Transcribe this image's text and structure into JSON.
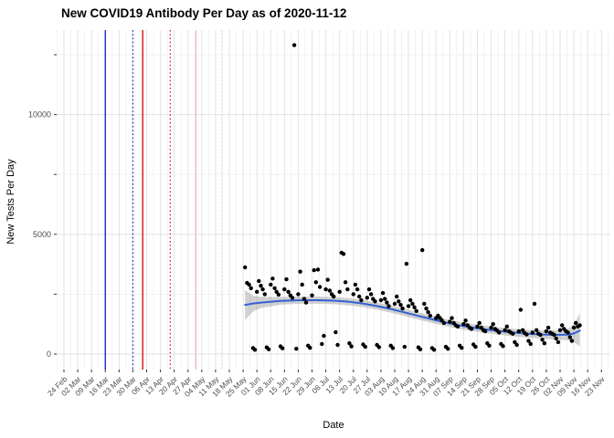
{
  "chart_data": {
    "type": "scatter",
    "title": "New COVID19 Antibody Per Day as of 2020-11-12",
    "xlabel": "Date",
    "ylabel": "New Tests Per Day",
    "x_domain": [
      "2020-02-24",
      "2020-11-23"
    ],
    "ylim": [
      0,
      13500
    ],
    "grid": "on",
    "legend": "none",
    "x_ticks": [
      "24 Feb",
      "02 Mar",
      "09 Mar",
      "16 Mar",
      "23 Mar",
      "30 Mar",
      "06 Apr",
      "13 Apr",
      "20 Apr",
      "27 Apr",
      "04 May",
      "11 May",
      "18 May",
      "25 May",
      "01 Jun",
      "08 Jun",
      "15 Jun",
      "22 Jun",
      "29 Jun",
      "06 Jul",
      "13 Jul",
      "20 Jul",
      "27 Jul",
      "03 Aug",
      "10 Aug",
      "17 Aug",
      "24 Aug",
      "31 Aug",
      "07 Sep",
      "14 Sep",
      "21 Sep",
      "28 Sep",
      "05 Oct",
      "12 Oct",
      "19 Oct",
      "26 Oct",
      "02 Nov",
      "09 Nov",
      "16 Nov",
      "23 Nov"
    ],
    "y_ticks": [
      [
        0,
        "0"
      ],
      [
        2500,
        ""
      ],
      [
        5000,
        "5000"
      ],
      [
        7500,
        ""
      ],
      [
        10000,
        "10000"
      ],
      [
        12500,
        ""
      ]
    ],
    "vlines": [
      {
        "date": "2020-03-16",
        "color": "#1414cc",
        "style": "solid"
      },
      {
        "date": "2020-03-30",
        "color": "#2a2ac4",
        "style": "dotted"
      },
      {
        "date": "2020-04-04",
        "color": "#d40000",
        "style": "solid"
      },
      {
        "date": "2020-04-18",
        "color": "#c23030",
        "style": "dotted"
      },
      {
        "date": "2020-05-01",
        "color": "#ffb6c1",
        "style": "solid"
      },
      {
        "date": "2020-05-14",
        "color": "#ffd0d9",
        "style": "dotted"
      }
    ],
    "smooth": [
      [
        "2020-05-26",
        2050,
        1420,
        2680
      ],
      [
        "2020-05-30",
        2110,
        1780,
        2440
      ],
      [
        "2020-06-03",
        2150,
        1920,
        2390
      ],
      [
        "2020-06-13",
        2220,
        2060,
        2380
      ],
      [
        "2020-06-23",
        2250,
        2100,
        2400
      ],
      [
        "2020-07-03",
        2250,
        2100,
        2400
      ],
      [
        "2020-07-10",
        2230,
        2080,
        2380
      ],
      [
        "2020-07-17",
        2190,
        2040,
        2340
      ],
      [
        "2020-07-24",
        2120,
        1970,
        2270
      ],
      [
        "2020-07-31",
        2020,
        1870,
        2170
      ],
      [
        "2020-08-07",
        1900,
        1750,
        2050
      ],
      [
        "2020-08-14",
        1760,
        1610,
        1910
      ],
      [
        "2020-08-21",
        1610,
        1460,
        1760
      ],
      [
        "2020-08-28",
        1470,
        1320,
        1620
      ],
      [
        "2020-09-04",
        1330,
        1180,
        1480
      ],
      [
        "2020-09-11",
        1210,
        1060,
        1360
      ],
      [
        "2020-09-18",
        1110,
        960,
        1260
      ],
      [
        "2020-09-25",
        1030,
        880,
        1180
      ],
      [
        "2020-10-02",
        960,
        810,
        1110
      ],
      [
        "2020-10-09",
        900,
        740,
        1060
      ],
      [
        "2020-10-16",
        855,
        690,
        1020
      ],
      [
        "2020-10-23",
        820,
        650,
        990
      ],
      [
        "2020-10-30",
        800,
        610,
        990
      ],
      [
        "2020-11-06",
        810,
        570,
        1060
      ],
      [
        "2020-11-09",
        860,
        500,
        1250
      ],
      [
        "2020-11-12",
        980,
        320,
        1700
      ]
    ],
    "points": [
      [
        "2020-05-26",
        3620
      ],
      [
        "2020-05-27",
        2970
      ],
      [
        "2020-05-28",
        2900
      ],
      [
        "2020-05-29",
        2750
      ],
      [
        "2020-05-30",
        250
      ],
      [
        "2020-05-31",
        180
      ],
      [
        "2020-06-01",
        2600
      ],
      [
        "2020-06-02",
        3050
      ],
      [
        "2020-06-03",
        2850
      ],
      [
        "2020-06-04",
        2700
      ],
      [
        "2020-06-05",
        2500
      ],
      [
        "2020-06-06",
        280
      ],
      [
        "2020-06-07",
        200
      ],
      [
        "2020-06-08",
        2900
      ],
      [
        "2020-06-09",
        3150
      ],
      [
        "2020-06-10",
        2750
      ],
      [
        "2020-06-11",
        2600
      ],
      [
        "2020-06-12",
        2480
      ],
      [
        "2020-06-13",
        320
      ],
      [
        "2020-06-14",
        240
      ],
      [
        "2020-06-15",
        2700
      ],
      [
        "2020-06-16",
        3120
      ],
      [
        "2020-06-17",
        2600
      ],
      [
        "2020-06-18",
        2450
      ],
      [
        "2020-06-19",
        2350
      ],
      [
        "2020-06-20",
        12900
      ],
      [
        "2020-06-21",
        220
      ],
      [
        "2020-06-22",
        2500
      ],
      [
        "2020-06-23",
        3440
      ],
      [
        "2020-06-24",
        2900
      ],
      [
        "2020-06-25",
        2300
      ],
      [
        "2020-06-26",
        2150
      ],
      [
        "2020-06-27",
        350
      ],
      [
        "2020-06-28",
        260
      ],
      [
        "2020-06-29",
        2450
      ],
      [
        "2020-06-30",
        3500
      ],
      [
        "2020-07-01",
        3000
      ],
      [
        "2020-07-02",
        3530
      ],
      [
        "2020-07-03",
        2800
      ],
      [
        "2020-07-04",
        420
      ],
      [
        "2020-07-05",
        760
      ],
      [
        "2020-07-06",
        2700
      ],
      [
        "2020-07-07",
        3100
      ],
      [
        "2020-07-08",
        2650
      ],
      [
        "2020-07-09",
        2500
      ],
      [
        "2020-07-10",
        2400
      ],
      [
        "2020-07-11",
        910
      ],
      [
        "2020-07-12",
        380
      ],
      [
        "2020-07-13",
        2600
      ],
      [
        "2020-07-14",
        4230
      ],
      [
        "2020-07-15",
        4180
      ],
      [
        "2020-07-16",
        3000
      ],
      [
        "2020-07-17",
        2700
      ],
      [
        "2020-07-18",
        450
      ],
      [
        "2020-07-19",
        320
      ],
      [
        "2020-07-20",
        2500
      ],
      [
        "2020-07-21",
        2900
      ],
      [
        "2020-07-22",
        2700
      ],
      [
        "2020-07-23",
        2400
      ],
      [
        "2020-07-24",
        2250
      ],
      [
        "2020-07-25",
        400
      ],
      [
        "2020-07-26",
        300
      ],
      [
        "2020-07-27",
        2350
      ],
      [
        "2020-07-28",
        2700
      ],
      [
        "2020-07-29",
        2500
      ],
      [
        "2020-07-30",
        2300
      ],
      [
        "2020-07-31",
        2200
      ],
      [
        "2020-08-01",
        380
      ],
      [
        "2020-08-02",
        290
      ],
      [
        "2020-08-03",
        2250
      ],
      [
        "2020-08-04",
        2550
      ],
      [
        "2020-08-05",
        2300
      ],
      [
        "2020-08-06",
        2150
      ],
      [
        "2020-08-07",
        2000
      ],
      [
        "2020-08-08",
        350
      ],
      [
        "2020-08-09",
        250
      ],
      [
        "2020-08-10",
        2100
      ],
      [
        "2020-08-11",
        2400
      ],
      [
        "2020-08-12",
        2200
      ],
      [
        "2020-08-13",
        2050
      ],
      [
        "2020-08-14",
        1900
      ],
      [
        "2020-08-15",
        300
      ],
      [
        "2020-08-16",
        3770
      ],
      [
        "2020-08-17",
        2000
      ],
      [
        "2020-08-18",
        2250
      ],
      [
        "2020-08-19",
        2100
      ],
      [
        "2020-08-20",
        1950
      ],
      [
        "2020-08-21",
        1800
      ],
      [
        "2020-08-22",
        280
      ],
      [
        "2020-08-23",
        200
      ],
      [
        "2020-08-24",
        4340
      ],
      [
        "2020-08-25",
        2100
      ],
      [
        "2020-08-26",
        1900
      ],
      [
        "2020-08-27",
        1750
      ],
      [
        "2020-08-28",
        1600
      ],
      [
        "2020-08-29",
        250
      ],
      [
        "2020-08-30",
        180
      ],
      [
        "2020-08-31",
        1500
      ],
      [
        "2020-09-01",
        1600
      ],
      [
        "2020-09-02",
        1500
      ],
      [
        "2020-09-03",
        1400
      ],
      [
        "2020-09-04",
        1300
      ],
      [
        "2020-09-05",
        300
      ],
      [
        "2020-09-06",
        220
      ],
      [
        "2020-09-07",
        1350
      ],
      [
        "2020-09-08",
        1500
      ],
      [
        "2020-09-09",
        1300
      ],
      [
        "2020-09-10",
        1200
      ],
      [
        "2020-09-11",
        1150
      ],
      [
        "2020-09-12",
        350
      ],
      [
        "2020-09-13",
        260
      ],
      [
        "2020-09-14",
        1250
      ],
      [
        "2020-09-15",
        1400
      ],
      [
        "2020-09-16",
        1200
      ],
      [
        "2020-09-17",
        1100
      ],
      [
        "2020-09-18",
        1050
      ],
      [
        "2020-09-19",
        400
      ],
      [
        "2020-09-20",
        300
      ],
      [
        "2020-09-21",
        1150
      ],
      [
        "2020-09-22",
        1300
      ],
      [
        "2020-09-23",
        1100
      ],
      [
        "2020-09-24",
        1000
      ],
      [
        "2020-09-25",
        950
      ],
      [
        "2020-09-26",
        450
      ],
      [
        "2020-09-27",
        350
      ],
      [
        "2020-09-28",
        1100
      ],
      [
        "2020-09-29",
        1250
      ],
      [
        "2020-09-30",
        1050
      ],
      [
        "2020-10-01",
        980
      ],
      [
        "2020-10-02",
        900
      ],
      [
        "2020-10-03",
        420
      ],
      [
        "2020-10-04",
        330
      ],
      [
        "2020-10-05",
        1000
      ],
      [
        "2020-10-06",
        1150
      ],
      [
        "2020-10-07",
        950
      ],
      [
        "2020-10-08",
        900
      ],
      [
        "2020-10-09",
        850
      ],
      [
        "2020-10-10",
        500
      ],
      [
        "2020-10-11",
        380
      ],
      [
        "2020-10-12",
        950
      ],
      [
        "2020-10-13",
        1850
      ],
      [
        "2020-10-14",
        1000
      ],
      [
        "2020-10-15",
        880
      ],
      [
        "2020-10-16",
        820
      ],
      [
        "2020-10-17",
        550
      ],
      [
        "2020-10-18",
        420
      ],
      [
        "2020-10-19",
        900
      ],
      [
        "2020-10-20",
        2100
      ],
      [
        "2020-10-21",
        1000
      ],
      [
        "2020-10-22",
        850
      ],
      [
        "2020-10-23",
        800
      ],
      [
        "2020-10-24",
        600
      ],
      [
        "2020-10-25",
        450
      ],
      [
        "2020-10-26",
        950
      ],
      [
        "2020-10-27",
        1100
      ],
      [
        "2020-10-28",
        900
      ],
      [
        "2020-10-29",
        850
      ],
      [
        "2020-10-30",
        800
      ],
      [
        "2020-10-31",
        650
      ],
      [
        "2020-11-01",
        500
      ],
      [
        "2020-11-02",
        1000
      ],
      [
        "2020-11-03",
        1200
      ],
      [
        "2020-11-04",
        1050
      ],
      [
        "2020-11-05",
        950
      ],
      [
        "2020-11-06",
        900
      ],
      [
        "2020-11-07",
        700
      ],
      [
        "2020-11-08",
        550
      ],
      [
        "2020-11-09",
        1100
      ],
      [
        "2020-11-10",
        1300
      ],
      [
        "2020-11-11",
        1150
      ],
      [
        "2020-11-12",
        1200
      ]
    ],
    "colors": {
      "point": "#000000",
      "smooth_line": "#3360d2",
      "ribbon": "rgba(90,90,90,0.28)",
      "grid_major": "#e2e2e2",
      "grid_minor": "#eeeeee",
      "axis_text": "#4d4d4d",
      "tick_mark": "#333333",
      "title_text": "#000000"
    }
  }
}
